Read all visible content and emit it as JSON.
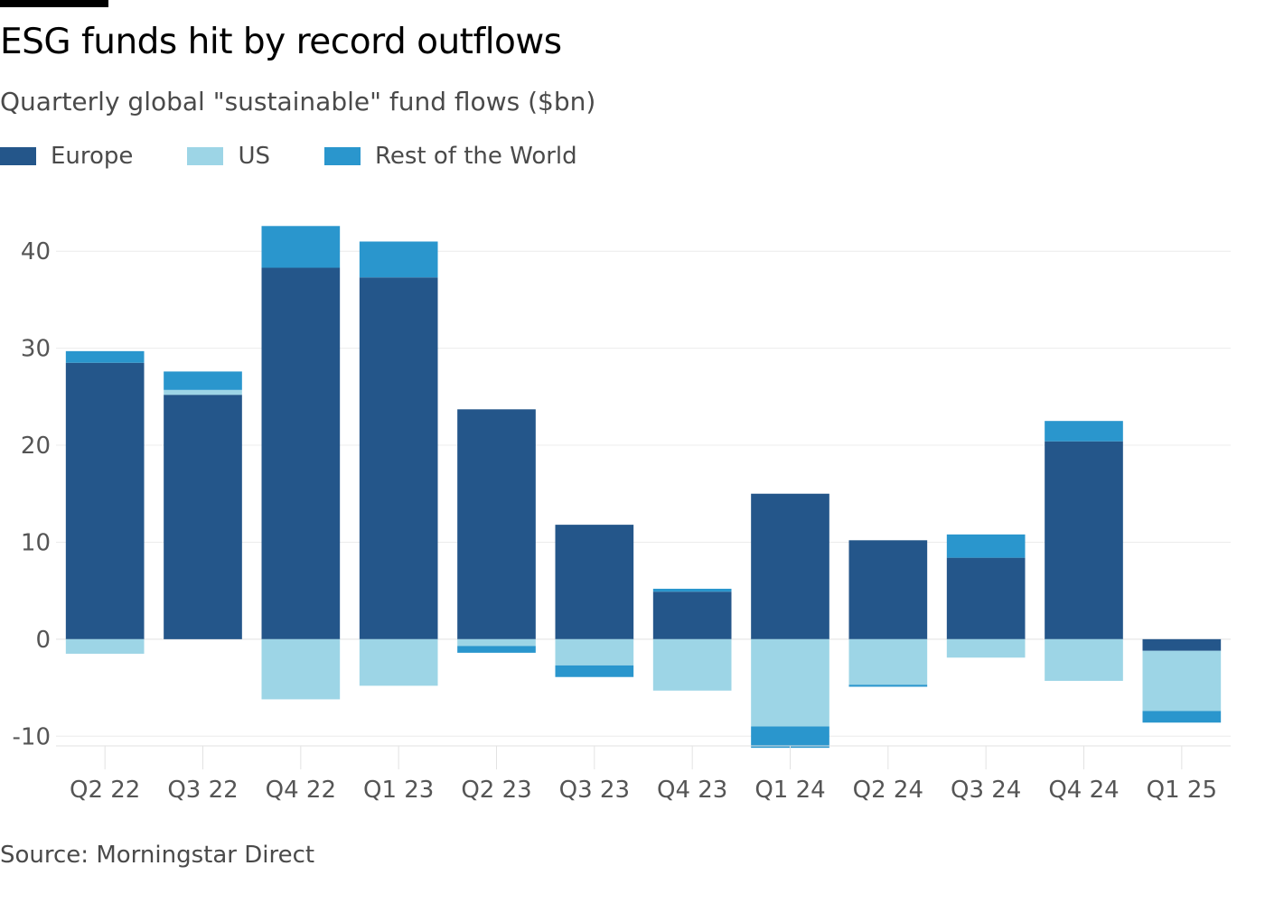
{
  "header": {
    "title": "ESG funds hit by record outflows",
    "subtitle": "Quarterly global \"sustainable\" fund flows ($bn)"
  },
  "legend": [
    {
      "label": "Europe",
      "color": "#24568a"
    },
    {
      "label": "US",
      "color": "#9dd5e6"
    },
    {
      "label": "Rest of the World",
      "color": "#2a96cd"
    }
  ],
  "footer": {
    "source": "Source: Morningstar Direct"
  },
  "chart_data": {
    "type": "bar",
    "stacked": true,
    "title": "ESG funds hit by record outflows",
    "ylabel": "Quarterly global \"sustainable\" fund flows ($bn)",
    "xlabel": "",
    "categories": [
      "Q2 22",
      "Q3 22",
      "Q4 22",
      "Q1 23",
      "Q2 23",
      "Q3 23",
      "Q4 23",
      "Q1 24",
      "Q2 24",
      "Q3 24",
      "Q4 24",
      "Q1 25"
    ],
    "series": [
      {
        "name": "Europe",
        "color": "#24568a",
        "values": [
          28.5,
          25.2,
          38.3,
          37.3,
          23.7,
          11.8,
          4.9,
          15.0,
          10.2,
          8.4,
          20.4,
          -1.2
        ]
      },
      {
        "name": "US",
        "color": "#9dd5e6",
        "values": [
          -1.5,
          0.5,
          -6.2,
          -4.8,
          -0.7,
          -2.7,
          -5.3,
          -9.0,
          -4.7,
          -1.9,
          -4.3,
          -6.2
        ]
      },
      {
        "name": "Rest of the World",
        "color": "#2a96cd",
        "values": [
          1.2,
          1.9,
          4.3,
          3.7,
          -0.7,
          -1.2,
          0.3,
          -2.2,
          -0.2,
          2.4,
          2.1,
          -1.2
        ]
      }
    ],
    "yticks": [
      -10,
      0,
      10,
      20,
      30,
      40
    ],
    "ylim": [
      -11,
      43
    ],
    "grid": true,
    "legend_position": "top-left"
  }
}
